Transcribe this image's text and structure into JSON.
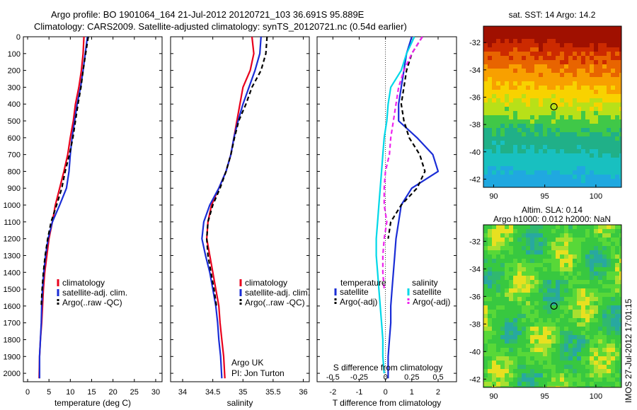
{
  "figure": {
    "title_line1": "Argo profile: BO 1901064_164 21-Jul-2012 20120721_103 36.691S 95.889E",
    "title_line2": "Climatology: CARS2009. Satellite-adjusted climatology: synTS_20120721.nc (0.54d earlier)",
    "side_stamp": "IMOS 27-Jul-2012 17:01:15",
    "float_info": [
      "Argo UK",
      "PI: Jon Turton"
    ]
  },
  "chart_data": [
    {
      "type": "line",
      "id": "temperature",
      "xlabel": "temperature (deg C)",
      "xlim": [
        -1,
        31.5
      ],
      "ylim": [
        2050,
        0
      ],
      "xticks": [
        0,
        5,
        10,
        15,
        20,
        25,
        30
      ],
      "yticks": [
        0,
        100,
        200,
        300,
        400,
        500,
        600,
        700,
        800,
        900,
        1000,
        1100,
        1200,
        1300,
        1400,
        1500,
        1600,
        1700,
        1800,
        1900,
        2000
      ],
      "legend": [
        "climatology",
        "satellite-adj. clim.",
        "Argo(..raw -QC)"
      ],
      "series": [
        {
          "name": "climatology",
          "color": "#e8001c",
          "dash": "",
          "x": [
            13.2,
            13.0,
            12.6,
            12.0,
            11.2,
            10.7,
            10.0,
            9.4,
            8.5,
            7.5,
            6.5,
            5.8,
            5.0,
            4.5,
            4.0,
            3.7,
            3.5,
            3.3,
            3.0,
            2.8,
            2.7
          ],
          "y": [
            0,
            100,
            200,
            300,
            400,
            500,
            600,
            700,
            800,
            900,
            1000,
            1100,
            1200,
            1300,
            1400,
            1500,
            1600,
            1700,
            1800,
            1900,
            2030
          ]
        },
        {
          "name": "satellite-adj. clim.",
          "color": "#1a2dd6",
          "dash": "",
          "x": [
            14.0,
            13.5,
            13.0,
            12.4,
            11.6,
            11.0,
            10.4,
            10.0,
            9.7,
            9.1,
            7.5,
            5.8,
            4.8,
            4.2,
            3.8,
            3.5,
            3.3,
            3.2,
            3.0,
            2.8,
            2.8
          ],
          "y": [
            0,
            100,
            200,
            300,
            400,
            500,
            600,
            700,
            800,
            900,
            1000,
            1100,
            1200,
            1300,
            1400,
            1500,
            1600,
            1700,
            1800,
            1900,
            2030
          ]
        },
        {
          "name": "Argo(..raw -QC)",
          "color": "#000000",
          "dash": "6,4",
          "x": [
            14.2,
            13.6,
            13.0,
            12.5,
            11.8,
            11.2,
            10.6,
            9.8,
            8.8,
            8.0,
            6.8,
            5.5,
            4.7,
            4.1,
            3.7,
            3.4,
            3.2
          ],
          "y": [
            0,
            100,
            200,
            300,
            400,
            500,
            600,
            700,
            800,
            900,
            1000,
            1100,
            1200,
            1300,
            1400,
            1500,
            1600
          ]
        }
      ]
    },
    {
      "type": "line",
      "id": "salinity",
      "xlabel": "salinity",
      "xlim": [
        33.8,
        36.1
      ],
      "ylim": [
        2050,
        0
      ],
      "xticks": [
        34,
        34.5,
        35,
        35.5,
        36
      ],
      "xticklabels": [
        "34",
        "34.5",
        "35",
        "35.5",
        "36"
      ],
      "legend": [
        "climatology",
        "satellite-adj. clim.",
        "Argo(..raw -QC)"
      ],
      "series": [
        {
          "name": "climatology",
          "color": "#e8001c",
          "dash": "",
          "x": [
            35.15,
            35.18,
            35.12,
            35.0,
            34.95,
            34.9,
            34.85,
            34.8,
            34.72,
            34.6,
            34.48,
            34.42,
            34.4,
            34.45,
            34.5,
            34.55,
            34.6,
            34.62,
            34.65,
            34.68,
            34.7
          ],
          "y": [
            0,
            100,
            200,
            300,
            400,
            500,
            600,
            700,
            800,
            900,
            1000,
            1100,
            1200,
            1300,
            1400,
            1500,
            1600,
            1700,
            1800,
            1900,
            2030
          ]
        },
        {
          "name": "satellite-adj. clim.",
          "color": "#1a2dd6",
          "dash": "",
          "x": [
            35.3,
            35.28,
            35.2,
            35.1,
            35.0,
            34.92,
            34.85,
            34.8,
            34.72,
            34.6,
            34.45,
            34.35,
            34.32,
            34.38,
            34.45,
            34.5,
            34.55,
            34.58,
            34.6,
            34.63,
            34.65
          ],
          "y": [
            0,
            100,
            200,
            300,
            400,
            500,
            600,
            700,
            800,
            900,
            1000,
            1100,
            1200,
            1300,
            1400,
            1500,
            1600,
            1700,
            1800,
            1900,
            2030
          ]
        },
        {
          "name": "Argo(..raw -QC)",
          "color": "#000000",
          "dash": "6,4",
          "x": [
            35.4,
            35.38,
            35.3,
            35.15,
            35.05,
            34.93,
            34.86,
            34.8,
            34.72,
            34.62,
            34.5,
            34.42,
            34.4,
            34.42,
            34.47,
            34.52,
            34.56
          ],
          "y": [
            0,
            100,
            200,
            300,
            400,
            500,
            600,
            700,
            800,
            900,
            1000,
            1100,
            1200,
            1300,
            1400,
            1500,
            1600
          ]
        }
      ]
    },
    {
      "type": "line",
      "id": "difference",
      "xlabel": "T difference from climatology",
      "xlabel_top": "S difference from climatology",
      "xlim": [
        -2.6,
        2.7
      ],
      "ylim": [
        2050,
        0
      ],
      "xticks": [
        -2,
        -1,
        0,
        1,
        2
      ],
      "xticks_s": [
        -0.5,
        -0.25,
        0,
        0.25,
        0.5
      ],
      "xticks_s_labels": [
        "-0.5",
        "-0.25",
        "0",
        "0.25",
        "0.5"
      ],
      "legend_temperature_title": "temperature",
      "legend_salinity_title": "salinity",
      "legend": [
        "satellite",
        "Argo(-adj)",
        "satellite",
        "Argo(-adj)"
      ],
      "series": [
        {
          "name": "satellite",
          "group": "temperature",
          "color": "#1a2dd6",
          "dash": "",
          "x": [
            1.0,
            0.8,
            0.7,
            0.6,
            0.5,
            0.5,
            1.2,
            1.8,
            2.0,
            1.0,
            0.6,
            0.5,
            0.4,
            0.35,
            0.3,
            0.25,
            0.2,
            0.2,
            0.15,
            0.1,
            0.1
          ],
          "y": [
            0,
            100,
            200,
            300,
            400,
            500,
            600,
            700,
            800,
            900,
            1000,
            1100,
            1200,
            1300,
            1400,
            1500,
            1600,
            1700,
            1800,
            1900,
            2030
          ]
        },
        {
          "name": "Argo(-adj)",
          "group": "temperature",
          "color": "#000000",
          "dash": "6,4",
          "x": [
            1.4,
            1.0,
            0.8,
            0.7,
            0.6,
            0.7,
            0.9,
            1.3,
            1.5,
            1.2,
            0.6,
            0.2,
            0.1
          ],
          "y": [
            0,
            100,
            200,
            300,
            400,
            500,
            600,
            700,
            800,
            900,
            1000,
            1100,
            1200
          ]
        },
        {
          "name": "satellite",
          "group": "salinity",
          "color": "#00d8e8",
          "dash": "",
          "x": [
            1.1,
            0.8,
            0.6,
            0.2,
            0.1,
            0.05,
            -0.05,
            -0.1,
            -0.15,
            -0.2,
            -0.25,
            -0.3,
            -0.35,
            -0.35,
            -0.3,
            -0.25,
            -0.2,
            -0.15,
            -0.1,
            -0.1,
            -0.05
          ],
          "y": [
            0,
            100,
            200,
            300,
            400,
            500,
            600,
            700,
            800,
            900,
            1000,
            1100,
            1200,
            1300,
            1400,
            1500,
            1600,
            1700,
            1800,
            1900,
            2000
          ]
        },
        {
          "name": "Argo(-adj)",
          "group": "salinity",
          "color": "#ee22ee",
          "dash": "6,4",
          "x": [
            1.4,
            1.0,
            0.7,
            0.5,
            0.4,
            0.3,
            0.2,
            0.15,
            0.0,
            -0.05,
            -0.05,
            0.05,
            -0.05,
            -0.1,
            -0.1,
            -0.05
          ],
          "y": [
            0,
            100,
            200,
            300,
            400,
            500,
            600,
            700,
            800,
            900,
            1000,
            1100,
            1200,
            1300,
            1400,
            1500
          ]
        }
      ]
    },
    {
      "type": "heatmap",
      "id": "sst-map",
      "title": "sat. SST: 14 Argo: 14.2",
      "xlim": [
        89,
        102.5
      ],
      "ylim": [
        -42.6,
        -30.8
      ],
      "xticks": [
        90,
        95,
        100
      ],
      "yticks": [
        -32,
        -34,
        -36,
        -38,
        -40,
        -42
      ],
      "marker": {
        "lon": 95.9,
        "lat": -36.7
      }
    },
    {
      "type": "heatmap",
      "id": "sla-map",
      "title": "Altim. SLA: 0.14",
      "subtitle": "Argo h1000: 0.012 h2000: NaN",
      "xlim": [
        89,
        102.5
      ],
      "ylim": [
        -42.6,
        -30.8
      ],
      "xticks": [
        90,
        95,
        100
      ],
      "yticks": [
        -32,
        -34,
        -36,
        -38,
        -40,
        -42
      ],
      "marker": {
        "lon": 95.9,
        "lat": -36.7
      }
    }
  ]
}
